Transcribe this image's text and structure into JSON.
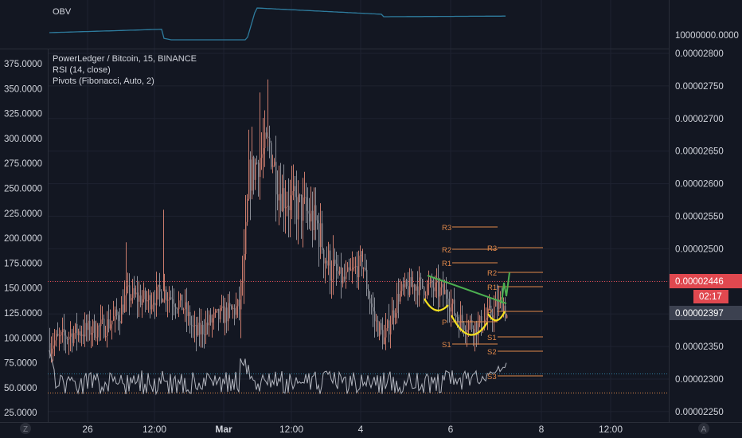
{
  "colors": {
    "background": "#131722",
    "grid": "#1e2230",
    "text": "#d1d4dc",
    "axis_text": "#b2b5be",
    "up": "#c97b6c",
    "down": "#8a8d96",
    "obv_line": "#2e7c9e",
    "rsi_line": "#b2b5be",
    "pivot": "#e0884a",
    "green_drawing": "#4caf50",
    "yellow_drawing": "#f5e11f",
    "price_label_red": "#e0484f",
    "current_price_gray": "#3c4150",
    "red_dotted": "#e0484f",
    "blue_dotted": "#2e7c9e",
    "orange_dotted": "#e0884a"
  },
  "obv_pane": {
    "label": "OBV",
    "axis_value": "10000000.0000"
  },
  "legend": {
    "symbol_line": "PowerLedger / Bitcoin, 15, BINANCE",
    "rsi_line": "RSI (14, close)",
    "pivots_line": "Pivots (Fibonacci, Auto, 2)"
  },
  "left_axis": {
    "ticks": [
      "375.0000",
      "350.0000",
      "325.0000",
      "300.0000",
      "275.0000",
      "250.0000",
      "225.0000",
      "200.0000",
      "175.0000",
      "150.0000",
      "125.0000",
      "100.0000",
      "75.0000",
      "50.0000",
      "25.0000"
    ]
  },
  "right_axis": {
    "ticks": [
      "0.00002800",
      "0.00002750",
      "0.00002700",
      "0.00002650",
      "0.00002600",
      "0.00002550",
      "0.00002500",
      "0.00002450",
      "0.00002400",
      "0.00002350",
      "0.00002300",
      "0.00002250"
    ],
    "last_price_label": "0.00002446",
    "countdown_label": "02:17",
    "current_price_label": "0.00002397"
  },
  "time_axis": {
    "labels": [
      "26",
      "12:00",
      "Mar",
      "12:00",
      "4",
      "6",
      "8",
      "12:00"
    ],
    "left_button": "Z",
    "right_button": "A"
  },
  "pivot_labels": [
    "R3",
    "R2",
    "R1",
    "P",
    "S1",
    "S2",
    "S3",
    "R3",
    "R2",
    "R1",
    "P",
    "S1",
    "S2",
    "S3"
  ],
  "chart_data": {
    "type": "candlestick",
    "title": "PowerLedger / Bitcoin, 15, BINANCE",
    "y_range_price": [
      2.23e-05,
      2.81e-05
    ],
    "y_range_rsi": [
      25,
      375
    ],
    "x_labels": [
      "26",
      "12:00",
      "Mar",
      "12:00",
      "4",
      "6",
      "8",
      "12:00"
    ],
    "last_price": 2.446e-05,
    "current_price": 2.397e-05,
    "pivots_left": {
      "R3": 2.532e-05,
      "R2": 2.498e-05,
      "R1": 2.478e-05,
      "S2": 2.386e-05,
      "S3": 2.365e-05
    },
    "pivots_right": {
      "R2": 2.465e-05,
      "R1": 2.45e-05,
      "P": 2.42e-05,
      "S1": 2.36e-05,
      "S2": 2.342e-05
    },
    "obv_note": "OBV line pane"
  }
}
